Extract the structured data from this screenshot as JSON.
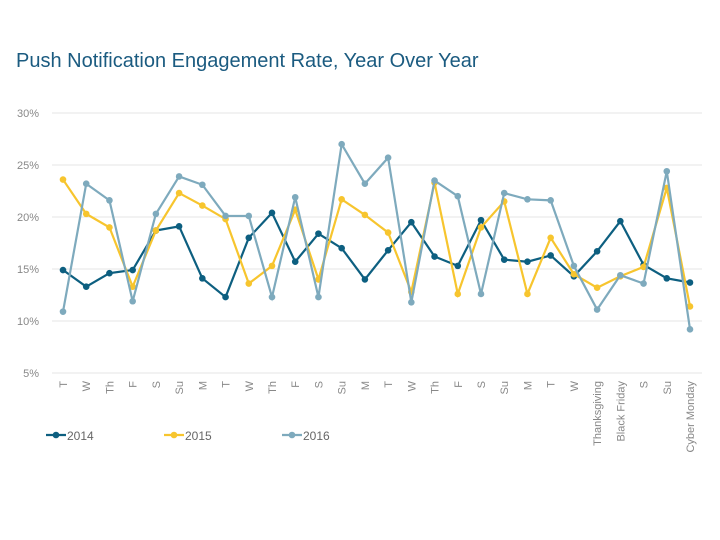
{
  "chart_data": {
    "type": "line",
    "title": "Push Notification Engagement Rate, Year Over Year",
    "categories": [
      "T",
      "W",
      "Th",
      "F",
      "S",
      "Su",
      "M",
      "T",
      "W",
      "Th",
      "F",
      "S",
      "Su",
      "M",
      "T",
      "W",
      "Th",
      "F",
      "S",
      "Su",
      "M",
      "T",
      "W",
      "Thanksgiving",
      "Black Friday",
      "S",
      "Su",
      "Cyber Monday"
    ],
    "yticks": [
      "5%",
      "10%",
      "15%",
      "20%",
      "25%",
      "30%"
    ],
    "ylim": [
      5,
      30
    ],
    "grid": true,
    "legend_position": "bottom-left",
    "series": [
      {
        "name": "2014",
        "color": "#0d5f80",
        "values": [
          14.9,
          13.3,
          14.6,
          14.9,
          18.7,
          19.1,
          14.1,
          12.3,
          18.0,
          20.4,
          15.7,
          18.4,
          17.0,
          14.0,
          16.8,
          19.5,
          16.2,
          15.3,
          19.7,
          15.9,
          15.7,
          16.3,
          14.3,
          16.7,
          19.6,
          15.4,
          14.1,
          13.7
        ]
      },
      {
        "name": "2015",
        "color": "#f7c52e",
        "values": [
          23.6,
          20.3,
          19.0,
          13.3,
          18.7,
          22.3,
          21.1,
          19.8,
          13.6,
          15.3,
          20.7,
          14.0,
          21.7,
          20.2,
          18.5,
          12.8,
          23.3,
          12.6,
          19.0,
          21.5,
          12.6,
          18.0,
          14.5,
          13.2,
          14.3,
          15.2,
          22.8,
          11.4
        ]
      },
      {
        "name": "2016",
        "color": "#7eaabd",
        "values": [
          10.9,
          23.2,
          21.6,
          11.9,
          20.3,
          23.9,
          23.1,
          20.1,
          20.1,
          12.3,
          21.9,
          12.3,
          27.0,
          23.2,
          25.7,
          11.8,
          23.5,
          22.0,
          12.6,
          22.3,
          21.7,
          21.6,
          15.3,
          11.1,
          14.4,
          13.6,
          24.4,
          9.2
        ]
      }
    ]
  }
}
